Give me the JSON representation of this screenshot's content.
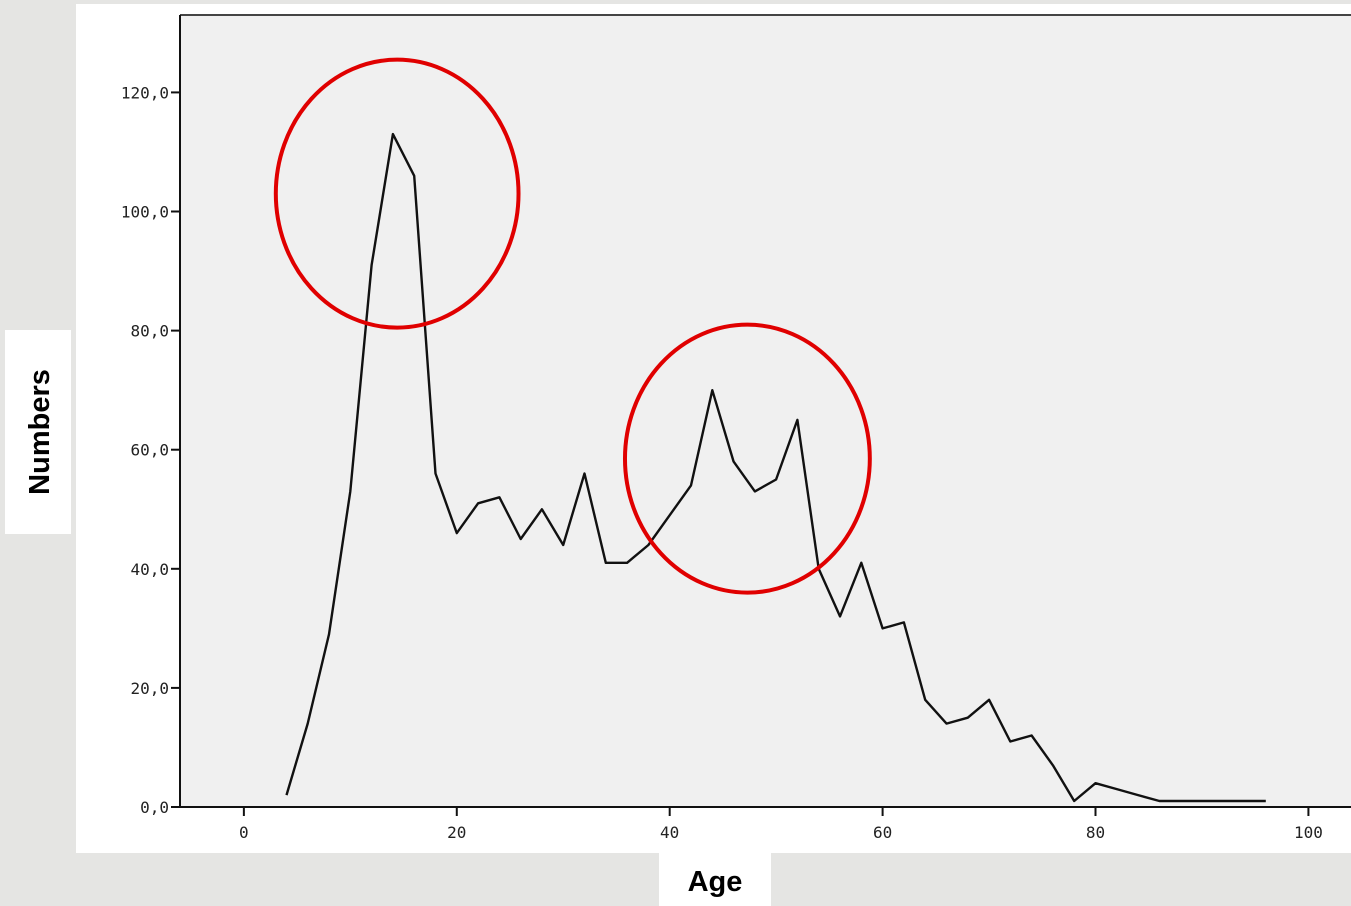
{
  "chart_data": {
    "type": "line",
    "title": "",
    "xlabel": "Age",
    "ylabel": "Numbers",
    "xlim": [
      -6,
      104
    ],
    "ylim": [
      0,
      133
    ],
    "x_ticks": [
      {
        "value": 0,
        "label": "0"
      },
      {
        "value": 20,
        "label": "20"
      },
      {
        "value": 40,
        "label": "40"
      },
      {
        "value": 60,
        "label": "60"
      },
      {
        "value": 80,
        "label": "80"
      },
      {
        "value": 100,
        "label": "100"
      }
    ],
    "y_ticks": [
      {
        "value": 0,
        "label": "0,0"
      },
      {
        "value": 20,
        "label": "20,0"
      },
      {
        "value": 40,
        "label": "40,0"
      },
      {
        "value": 60,
        "label": "60,0"
      },
      {
        "value": 80,
        "label": "80,0"
      },
      {
        "value": 100,
        "label": "100,0"
      },
      {
        "value": 120,
        "label": "120,0"
      }
    ],
    "grid": false,
    "series": [
      {
        "color": "#111111",
        "x": [
          4,
          6,
          8,
          10,
          12,
          14,
          16,
          18,
          20,
          22,
          24,
          26,
          28,
          30,
          32,
          34,
          36,
          38,
          40,
          42,
          44,
          46,
          48,
          50,
          52,
          54,
          56,
          58,
          60,
          62,
          64,
          66,
          68,
          70,
          72,
          74,
          76,
          78,
          80,
          82,
          84,
          86,
          88,
          90,
          92,
          94,
          96
        ],
        "y": [
          2,
          14,
          29,
          53,
          91,
          113,
          106,
          56,
          46,
          51,
          52,
          45,
          50,
          44,
          56,
          41,
          41,
          44,
          49,
          54,
          70,
          58,
          53,
          55,
          65,
          40,
          32,
          41,
          30,
          31,
          18,
          14,
          15,
          18,
          11,
          12,
          7,
          1,
          4,
          3,
          2,
          1,
          1,
          1,
          1,
          1,
          1
        ]
      }
    ],
    "annotations": [
      {
        "type": "circle",
        "color": "#e00000",
        "cx": 14.4,
        "cy": 103,
        "rx": 11.4,
        "ry": 22.5
      },
      {
        "type": "circle",
        "color": "#e00000",
        "cx": 47.3,
        "cy": 58.5,
        "rx": 11.5,
        "ry": 22.5
      }
    ]
  }
}
